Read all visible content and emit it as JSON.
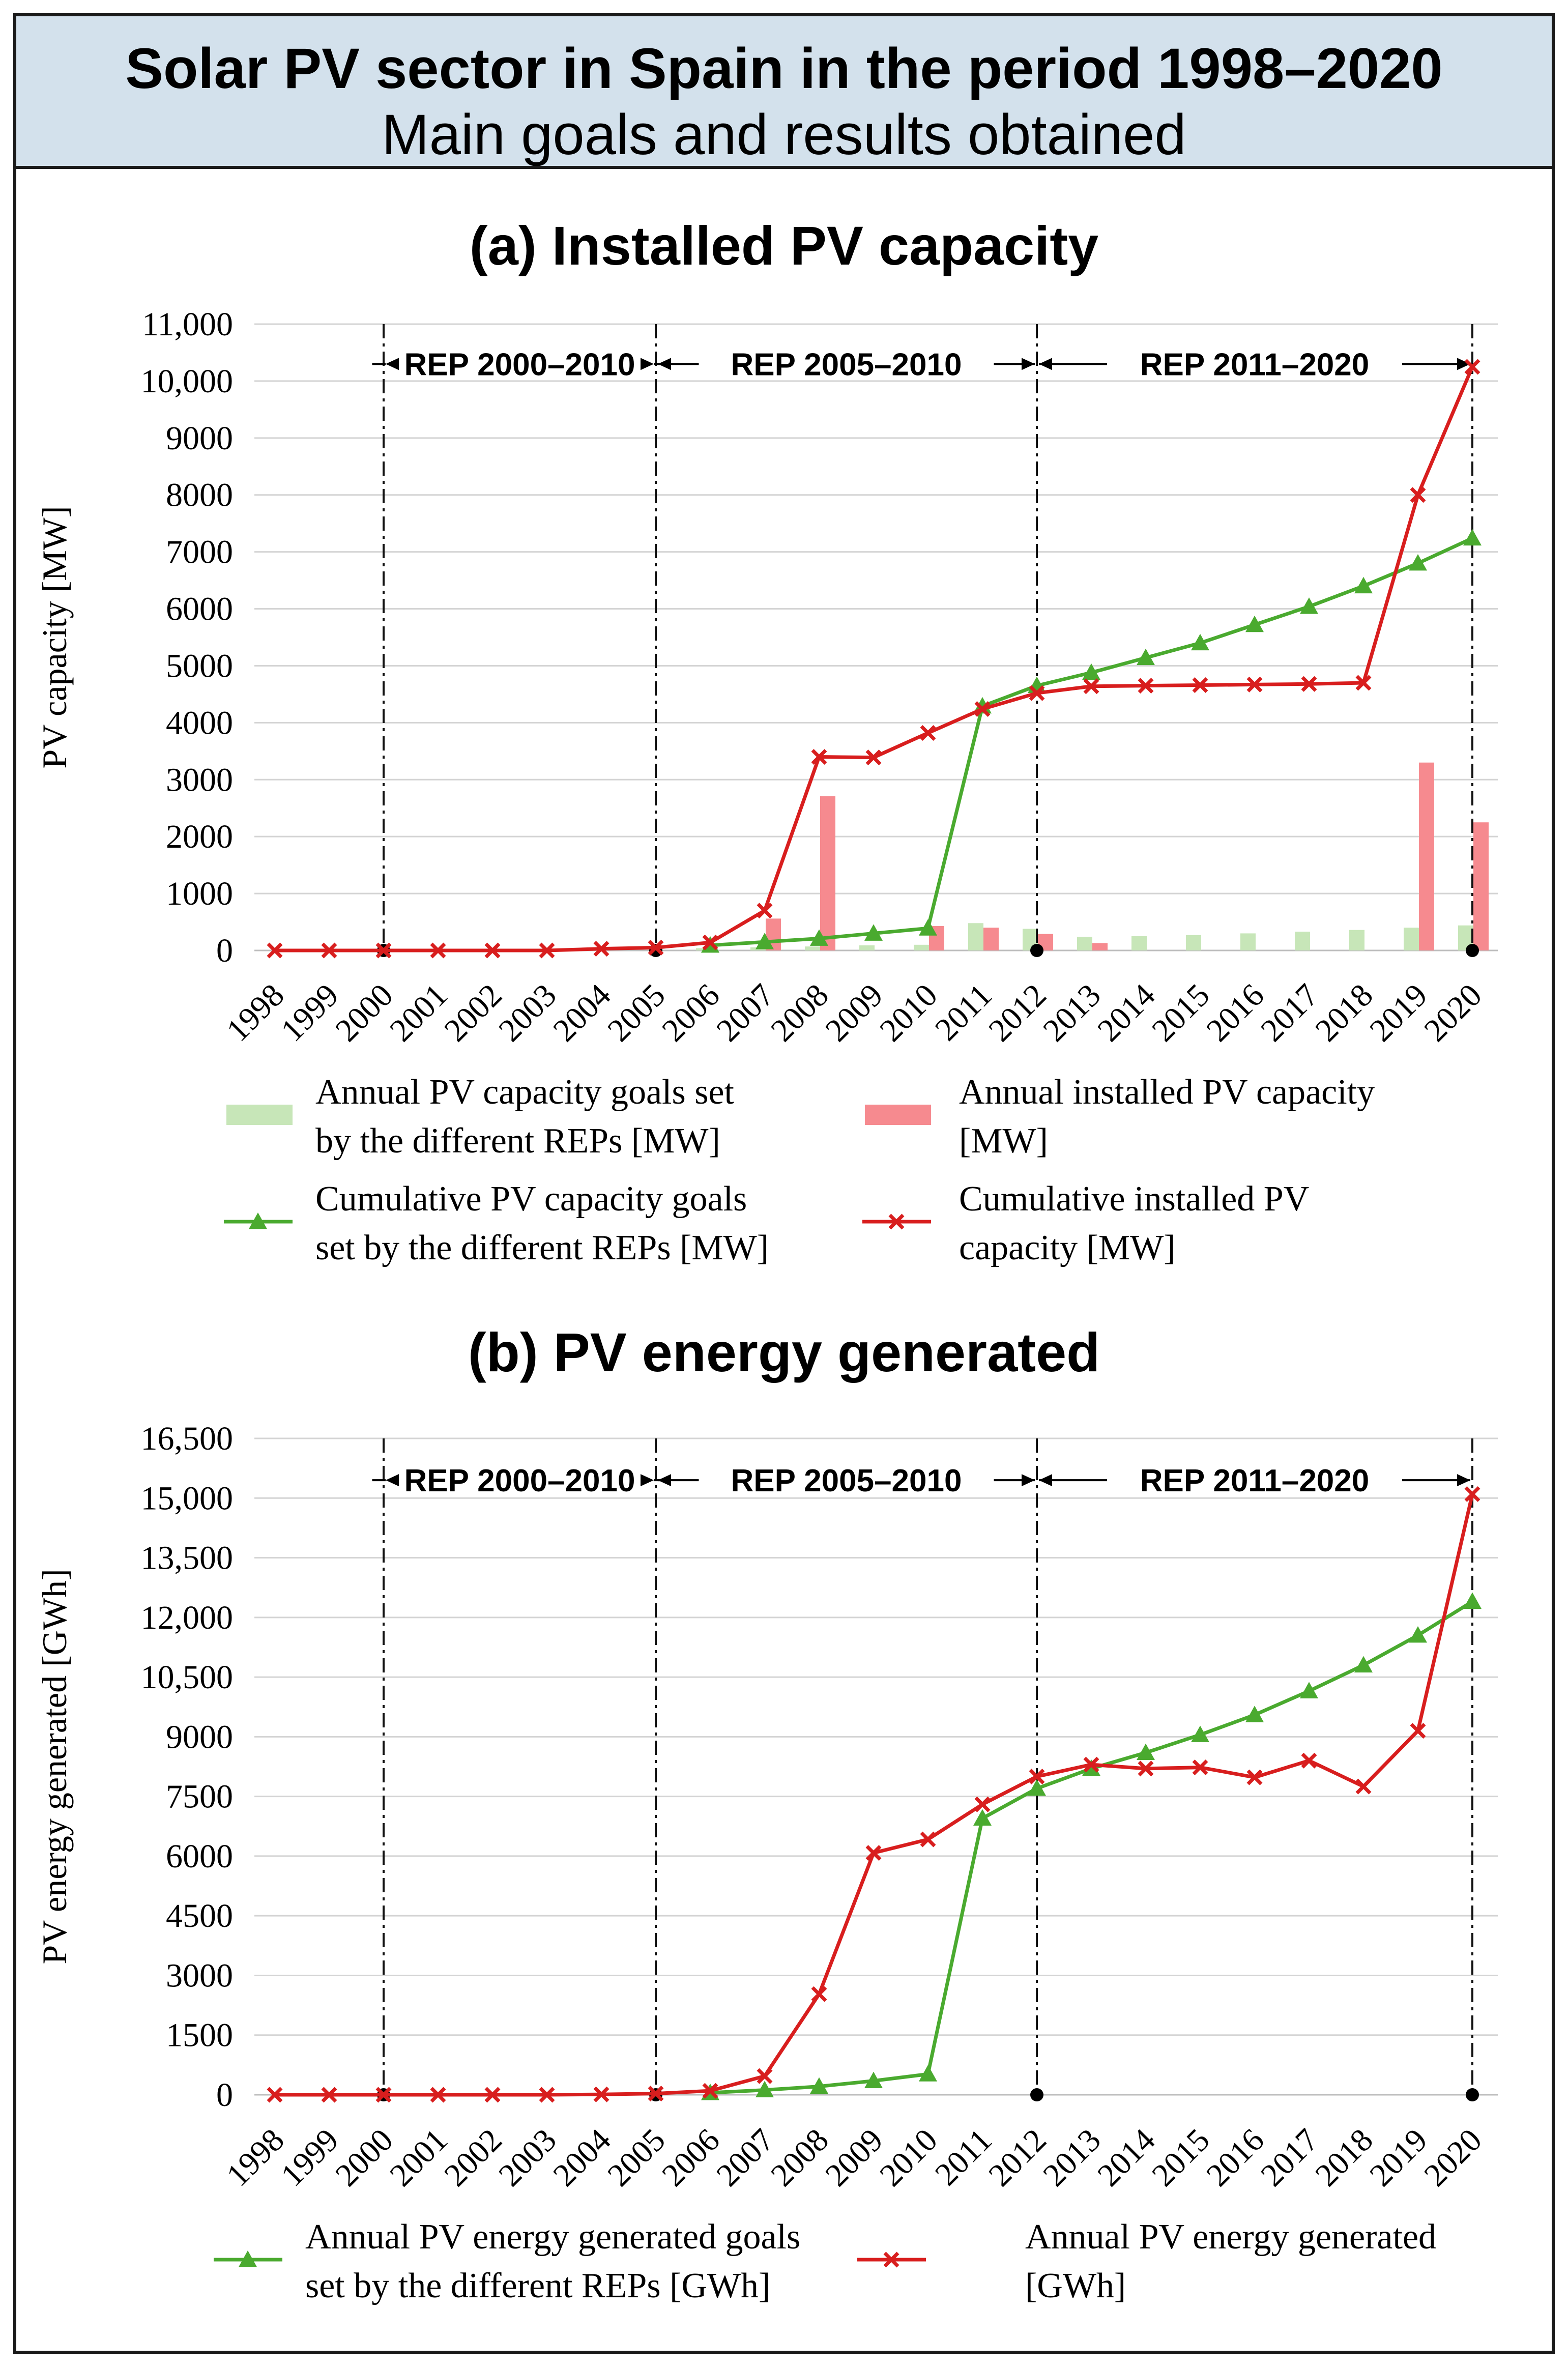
{
  "header": {
    "title": "Solar PV sector in Spain in the period 1998–2020",
    "subtitle": "Main goals and results obtained"
  },
  "colors": {
    "goal_line": "#4aaa2f",
    "installed_line": "#d81e1e",
    "goal_bar": "#c7e6b8",
    "installed_bar": "#f68a8f",
    "grid": "#d4d4d4",
    "rep_line": "#111111"
  },
  "rep_periods": [
    {
      "label": "REP 2000–2010",
      "start": "2000",
      "end": "2005"
    },
    {
      "label": "REP 2005–2010",
      "start": "2005",
      "end": "2012"
    },
    {
      "label": "REP 2011–2020",
      "start": "2012",
      "end": "2020"
    }
  ],
  "chart_data": [
    {
      "id": "a",
      "type": "bar+line",
      "title": "(a) Installed PV capacity",
      "ylabel": "PV capacity [MW]",
      "ylim": [
        0,
        11000
      ],
      "yticks": [
        0,
        1000,
        2000,
        3000,
        4000,
        5000,
        6000,
        7000,
        8000,
        9000,
        10000,
        11000
      ],
      "ytick_labels": [
        "0",
        "1000",
        "2000",
        "3000",
        "4000",
        "5000",
        "6000",
        "7000",
        "8000",
        "9000",
        "10,000",
        "11,000"
      ],
      "categories": [
        "1998",
        "1999",
        "2000",
        "2001",
        "2002",
        "2003",
        "2004",
        "2005",
        "2006",
        "2007",
        "2008",
        "2009",
        "2010",
        "2011",
        "2012",
        "2013",
        "2014",
        "2015",
        "2016",
        "2017",
        "2018",
        "2019",
        "2020"
      ],
      "grid": true,
      "series": [
        {
          "name": "Annual PV capacity goals set by the different REPs [MW]",
          "kind": "bar",
          "color": "#c7e6b8",
          "values": [
            null,
            null,
            null,
            null,
            null,
            null,
            null,
            null,
            40,
            55,
            70,
            90,
            100,
            480,
            380,
            240,
            250,
            270,
            300,
            330,
            360,
            400,
            440
          ]
        },
        {
          "name": "Annual installed PV capacity [MW]",
          "kind": "bar",
          "color": "#f68a8f",
          "values": [
            null,
            null,
            null,
            null,
            null,
            null,
            null,
            null,
            null,
            560,
            2710,
            null,
            430,
            400,
            290,
            130,
            null,
            null,
            null,
            null,
            null,
            3300,
            2250
          ]
        },
        {
          "name": "Cumulative PV capacity goals set by the different REPs [MW]",
          "kind": "line",
          "marker": "triangle",
          "color": "#4aaa2f",
          "values": [
            null,
            null,
            null,
            null,
            null,
            null,
            null,
            null,
            90,
            150,
            210,
            300,
            390,
            4290,
            4650,
            4880,
            5140,
            5400,
            5720,
            6040,
            6400,
            6800,
            7240
          ]
        },
        {
          "name": "Cumulative installed PV capacity [MW]",
          "kind": "line",
          "marker": "x",
          "color": "#d81e1e",
          "values": [
            0,
            0,
            0,
            0,
            0,
            0,
            30,
            50,
            140,
            700,
            3400,
            3390,
            3820,
            4240,
            4520,
            4640,
            4650,
            4660,
            4670,
            4680,
            4700,
            8000,
            10250
          ]
        }
      ],
      "legend": [
        {
          "label_lines": [
            "Annual PV capacity goals set",
            "by the different REPs [MW]"
          ],
          "kind": "bar",
          "color": "#c7e6b8"
        },
        {
          "label_lines": [
            "Annual installed PV capacity",
            "[MW]"
          ],
          "kind": "bar",
          "color": "#f68a8f"
        },
        {
          "label_lines": [
            "Cumulative PV capacity goals",
            "set by the different REPs [MW]"
          ],
          "kind": "line",
          "marker": "triangle",
          "color": "#4aaa2f"
        },
        {
          "label_lines": [
            "Cumulative installed PV",
            "capacity [MW]"
          ],
          "kind": "line",
          "marker": "x",
          "color": "#d81e1e"
        }
      ]
    },
    {
      "id": "b",
      "type": "line",
      "title": "(b) PV energy generated",
      "ylabel": "PV energy generated [GWh]",
      "ylim": [
        0,
        16500
      ],
      "yticks": [
        0,
        1500,
        3000,
        4500,
        6000,
        7500,
        9000,
        10500,
        12000,
        13500,
        15000,
        16500
      ],
      "ytick_labels": [
        "0",
        "1500",
        "3000",
        "4500",
        "6000",
        "7500",
        "9000",
        "10,500",
        "12,000",
        "13,500",
        "15,000",
        "16,500"
      ],
      "categories": [
        "1998",
        "1999",
        "2000",
        "2001",
        "2002",
        "2003",
        "2004",
        "2005",
        "2006",
        "2007",
        "2008",
        "2009",
        "2010",
        "2011",
        "2012",
        "2013",
        "2014",
        "2015",
        "2016",
        "2017",
        "2018",
        "2019",
        "2020"
      ],
      "grid": true,
      "series": [
        {
          "name": "Annual PV energy generated goals set by the different REPs [GWh]",
          "kind": "line",
          "marker": "triangle",
          "color": "#4aaa2f",
          "values": [
            null,
            null,
            null,
            null,
            null,
            null,
            null,
            null,
            50,
            120,
            210,
            350,
            520,
            6950,
            7700,
            8200,
            8600,
            9050,
            9550,
            10150,
            10800,
            11550,
            12400
          ]
        },
        {
          "name": "Annual PV energy generated [GWh]",
          "kind": "line",
          "marker": "x",
          "color": "#d81e1e",
          "values": [
            0,
            0,
            0,
            0,
            0,
            0,
            10,
            30,
            100,
            470,
            2530,
            6080,
            6420,
            7300,
            8000,
            8300,
            8200,
            8230,
            7980,
            8400,
            7750,
            9150,
            15100
          ]
        }
      ],
      "legend": [
        {
          "label_lines": [
            "Annual PV energy generated goals",
            "set by the different REPs [GWh]"
          ],
          "kind": "line",
          "marker": "triangle",
          "color": "#4aaa2f"
        },
        {
          "label_lines": [
            "Annual PV energy generated",
            "[GWh]"
          ],
          "kind": "line",
          "marker": "x",
          "color": "#d81e1e"
        }
      ]
    }
  ]
}
